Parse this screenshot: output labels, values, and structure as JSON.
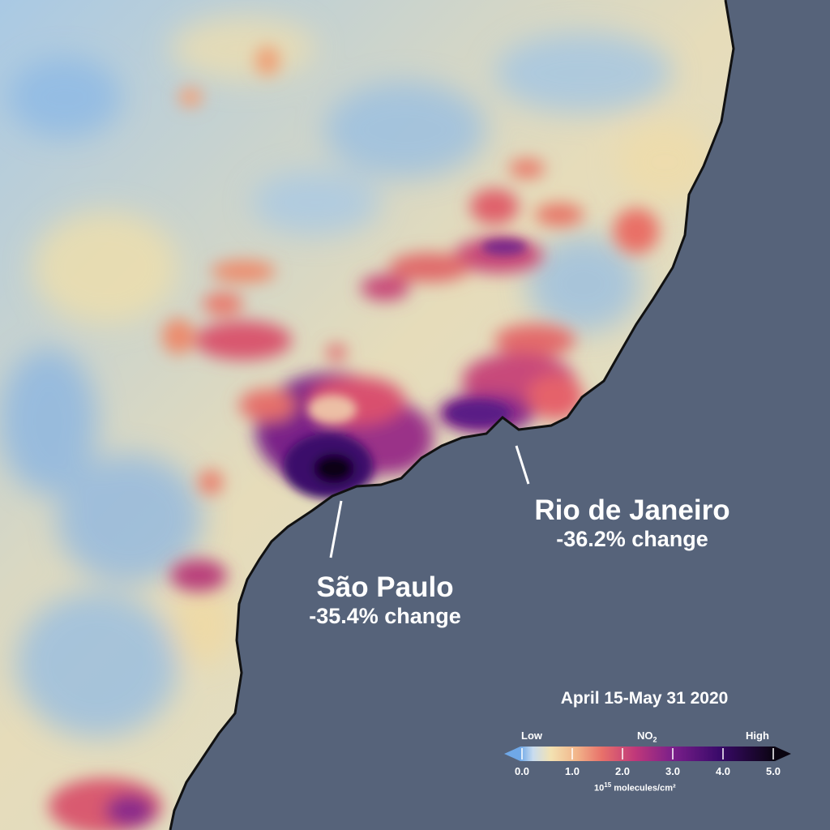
{
  "cities": [
    {
      "name": "São Paulo",
      "change": "-35.4% change"
    },
    {
      "name": "Rio de Janeiro",
      "change": "-36.2% change"
    }
  ],
  "legend": {
    "date_range": "April 15-May 31 2020",
    "low_label": "Low",
    "pollutant": "NO",
    "pollutant_subscript": "2",
    "high_label": "High",
    "ticks": [
      "0.0",
      "1.0",
      "2.0",
      "3.0",
      "4.0",
      "5.0"
    ],
    "unit_prefix": "10",
    "unit_exponent": "15",
    "unit_suffix": " molecules/cm²",
    "colors": [
      "#6fa8e8",
      "#f3e2b2",
      "#f0a07a",
      "#d9436b",
      "#7a1f8a",
      "#3a0a6a",
      "#0a0410"
    ]
  },
  "colors": {
    "ocean": "#56637a",
    "coastline": "#111111",
    "land_low": "#9ec5e6",
    "land_mid": "#efe0b4"
  }
}
